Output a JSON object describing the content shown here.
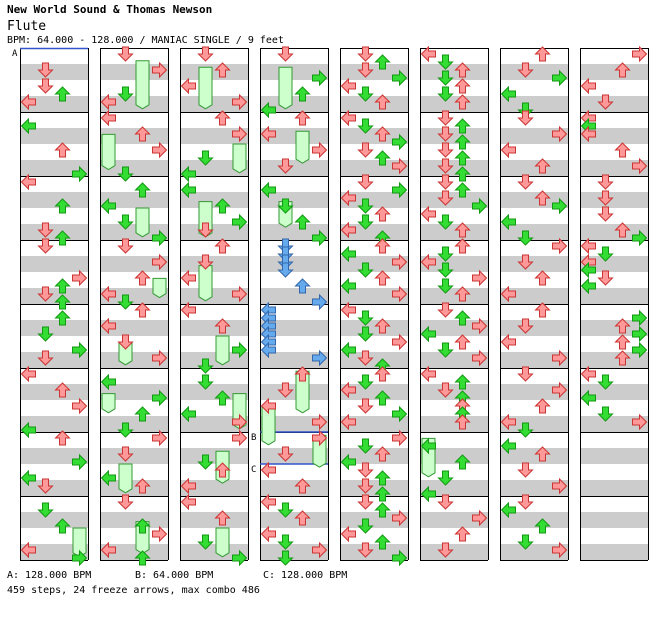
{
  "header": {
    "title": "New World Sound & Thomas Newson",
    "song": "Flute",
    "meta": "BPM: 64.000 - 128.000 / MANIAC SINGLE / 9 feet"
  },
  "bpm_markers": [
    {
      "label": "A",
      "bpm": "128.000"
    },
    {
      "label": "B",
      "bpm": "64.000"
    },
    {
      "label": "C",
      "bpm": "128.000"
    }
  ],
  "legend": [
    {
      "text": "A: 128.000 BPM"
    },
    {
      "text": "B: 64.000 BPM"
    },
    {
      "text": "C: 128.000 BPM"
    }
  ],
  "stats": {
    "text": "459 steps, 24 freeze arrows, max combo 486",
    "steps": 459,
    "freeze_arrows": 24,
    "max_combo": 486
  },
  "colors": {
    "quarter_note": "#ff9999",
    "eighth_note": "#33dd33",
    "sixteenth_note": "#66aaee",
    "freeze_body": "#ccffcc",
    "stripe": "#cccccc",
    "bpm_line": "#3355cc"
  },
  "chart": {
    "columns": 8,
    "measures_per_column": 8,
    "lanes": [
      "left",
      "down",
      "up",
      "right"
    ],
    "measures": [
      [
        [
          2,
          5
        ],
        [
          1,
          2
        ],
        [
          1,
          4
        ],
        [
          0,
          6
        ]
      ],
      [
        [
          0,
          1
        ],
        [
          2,
          4
        ],
        [
          3,
          7
        ]
      ],
      [
        [
          0,
          0
        ],
        [
          2,
          3
        ],
        [
          1,
          6
        ],
        [
          2,
          7
        ]
      ],
      [
        [
          1,
          0
        ],
        [
          3,
          4
        ],
        [
          2,
          5
        ],
        [
          1,
          6
        ],
        [
          2,
          7
        ]
      ],
      [
        [
          2,
          1
        ],
        [
          1,
          3
        ],
        [
          3,
          5
        ],
        [
          1,
          6
        ]
      ],
      [
        [
          0,
          0
        ],
        [
          2,
          2
        ],
        [
          3,
          4
        ],
        [
          0,
          7
        ]
      ],
      [
        [
          2,
          0
        ],
        [
          3,
          3
        ],
        [
          0,
          5
        ],
        [
          1,
          6
        ]
      ],
      [
        [
          1,
          1
        ],
        [
          2,
          3
        ],
        [
          0,
          6
        ],
        [
          3,
          7
        ]
      ],
      [
        [
          1,
          0
        ],
        [
          3,
          2
        ],
        [
          1,
          5
        ],
        [
          0,
          6
        ]
      ],
      [
        [
          0,
          0
        ],
        [
          2,
          2
        ],
        [
          3,
          4
        ],
        [
          1,
          7
        ]
      ],
      [
        [
          2,
          1
        ],
        [
          0,
          3
        ],
        [
          1,
          5
        ],
        [
          3,
          7
        ]
      ],
      [
        [
          1,
          0
        ],
        [
          3,
          2
        ],
        [
          2,
          4
        ],
        [
          0,
          6
        ],
        [
          1,
          7
        ]
      ],
      [
        [
          2,
          0
        ],
        [
          0,
          2
        ],
        [
          1,
          4
        ],
        [
          3,
          6
        ]
      ],
      [
        [
          0,
          1
        ],
        [
          3,
          3
        ],
        [
          2,
          5
        ],
        [
          1,
          7
        ]
      ],
      [
        [
          3,
          0
        ],
        [
          1,
          2
        ],
        [
          0,
          5
        ],
        [
          2,
          6
        ]
      ],
      [
        [
          1,
          0
        ],
        [
          2,
          3
        ],
        [
          3,
          4
        ],
        [
          0,
          6
        ],
        [
          2,
          7
        ]
      ],
      [
        [
          1,
          0
        ],
        [
          2,
          2
        ],
        [
          0,
          4
        ],
        [
          3,
          6
        ]
      ],
      [
        [
          2,
          0
        ],
        [
          3,
          2
        ],
        [
          1,
          5
        ],
        [
          0,
          7
        ]
      ],
      [
        [
          0,
          1
        ],
        [
          2,
          3
        ],
        [
          3,
          5
        ],
        [
          1,
          6
        ]
      ],
      [
        [
          2,
          0
        ],
        [
          1,
          2
        ],
        [
          0,
          4
        ],
        [
          3,
          6
        ]
      ],
      [
        [
          0,
          0
        ],
        [
          2,
          2
        ],
        [
          3,
          5
        ],
        [
          1,
          7
        ]
      ],
      [
        [
          1,
          1
        ],
        [
          2,
          3
        ],
        [
          0,
          5
        ],
        [
          3,
          6
        ]
      ],
      [
        [
          3,
          0
        ],
        [
          1,
          3
        ],
        [
          2,
          4
        ],
        [
          0,
          6
        ]
      ],
      [
        [
          0,
          0
        ],
        [
          2,
          2
        ],
        [
          1,
          5
        ],
        [
          3,
          7
        ]
      ],
      [
        [
          1,
          0
        ],
        [
          3,
          3
        ],
        [
          2,
          5
        ],
        [
          0,
          7
        ]
      ],
      [
        [
          2,
          0
        ],
        [
          0,
          2
        ],
        [
          3,
          4
        ],
        [
          1,
          6
        ]
      ],
      [
        [
          0,
          1
        ],
        [
          1,
          3
        ],
        [
          2,
          5
        ],
        [
          3,
          7
        ]
      ],
      [
        [
          1,
          0
        ],
        [
          1,
          1
        ],
        [
          1,
          2
        ],
        [
          1,
          3
        ],
        [
          2,
          5
        ],
        [
          3,
          7
        ]
      ],
      [
        [
          0,
          0
        ],
        [
          0,
          1
        ],
        [
          0,
          2
        ],
        [
          0,
          3
        ],
        [
          0,
          4
        ],
        [
          0,
          5
        ],
        [
          3,
          6
        ]
      ],
      [
        [
          2,
          0
        ],
        [
          1,
          2
        ],
        [
          0,
          4
        ],
        [
          3,
          6
        ]
      ],
      [
        [
          3,
          0
        ],
        [
          1,
          2
        ],
        [
          0,
          4
        ],
        [
          2,
          6
        ]
      ],
      [
        [
          0,
          0
        ],
        [
          1,
          1
        ],
        [
          2,
          2
        ],
        [
          0,
          4
        ],
        [
          1,
          5
        ],
        [
          3,
          6
        ],
        [
          1,
          7
        ]
      ],
      [
        [
          1,
          0
        ],
        [
          2,
          1
        ],
        [
          1,
          2
        ],
        [
          3,
          3
        ],
        [
          0,
          4
        ],
        [
          1,
          5
        ],
        [
          2,
          6
        ]
      ],
      [
        [
          0,
          0
        ],
        [
          1,
          1
        ],
        [
          2,
          2
        ],
        [
          3,
          3
        ],
        [
          1,
          4
        ],
        [
          2,
          5
        ],
        [
          3,
          6
        ]
      ],
      [
        [
          1,
          0
        ],
        [
          3,
          1
        ],
        [
          0,
          2
        ],
        [
          1,
          3
        ],
        [
          2,
          4
        ],
        [
          1,
          5
        ],
        [
          0,
          6
        ],
        [
          2,
          7
        ]
      ],
      [
        [
          2,
          0
        ],
        [
          0,
          1
        ],
        [
          3,
          2
        ],
        [
          1,
          3
        ],
        [
          2,
          4
        ],
        [
          0,
          5
        ],
        [
          3,
          6
        ]
      ],
      [
        [
          0,
          0
        ],
        [
          1,
          1
        ],
        [
          2,
          2
        ],
        [
          1,
          3
        ],
        [
          3,
          4
        ],
        [
          0,
          5
        ],
        [
          1,
          6
        ],
        [
          2,
          7
        ]
      ],
      [
        [
          2,
          0
        ],
        [
          1,
          1
        ],
        [
          0,
          2
        ],
        [
          2,
          3
        ],
        [
          1,
          4
        ],
        [
          3,
          5
        ],
        [
          0,
          6
        ]
      ],
      [
        [
          3,
          0
        ],
        [
          1,
          1
        ],
        [
          2,
          2
        ],
        [
          0,
          3
        ],
        [
          1,
          4
        ],
        [
          2,
          5
        ],
        [
          1,
          6
        ],
        [
          2,
          7
        ]
      ],
      [
        [
          1,
          0
        ],
        [
          2,
          1
        ],
        [
          3,
          2
        ],
        [
          1,
          3
        ],
        [
          0,
          4
        ],
        [
          2,
          5
        ],
        [
          1,
          6
        ],
        [
          3,
          7
        ]
      ],
      [
        [
          0,
          0
        ],
        [
          1,
          1
        ],
        [
          2,
          2
        ],
        [
          1,
          3
        ],
        [
          2,
          4
        ],
        [
          1,
          5
        ],
        [
          2,
          6
        ]
      ],
      [
        [
          1,
          0
        ],
        [
          2,
          1
        ],
        [
          1,
          2
        ],
        [
          2,
          3
        ],
        [
          1,
          4
        ],
        [
          2,
          5
        ],
        [
          1,
          6
        ],
        [
          2,
          7
        ]
      ],
      [
        [
          1,
          0
        ],
        [
          2,
          1
        ],
        [
          1,
          2
        ],
        [
          3,
          3
        ],
        [
          0,
          4
        ],
        [
          1,
          5
        ],
        [
          2,
          6
        ]
      ],
      [
        [
          2,
          0
        ],
        [
          1,
          1
        ],
        [
          0,
          2
        ],
        [
          1,
          3
        ],
        [
          3,
          4
        ],
        [
          1,
          5
        ],
        [
          2,
          6
        ]
      ],
      [
        [
          1,
          0
        ],
        [
          2,
          1
        ],
        [
          3,
          2
        ],
        [
          0,
          3
        ],
        [
          2,
          4
        ],
        [
          1,
          5
        ],
        [
          3,
          6
        ]
      ],
      [
        [
          0,
          0
        ],
        [
          2,
          1
        ],
        [
          1,
          2
        ],
        [
          2,
          3
        ],
        [
          2,
          4
        ],
        [
          2,
          5
        ],
        [
          2,
          6
        ]
      ],
      [
        [
          0,
          1
        ],
        [
          2,
          3
        ],
        [
          1,
          5
        ],
        [
          0,
          7
        ]
      ],
      [
        [
          1,
          0
        ],
        [
          3,
          2
        ],
        [
          2,
          4
        ],
        [
          1,
          6
        ]
      ],
      [
        [
          2,
          0
        ],
        [
          1,
          2
        ],
        [
          3,
          3
        ],
        [
          0,
          5
        ],
        [
          1,
          7
        ]
      ],
      [
        [
          1,
          0
        ],
        [
          3,
          2
        ],
        [
          0,
          4
        ],
        [
          2,
          6
        ]
      ],
      [
        [
          1,
          0
        ],
        [
          2,
          2
        ],
        [
          3,
          3
        ],
        [
          0,
          5
        ],
        [
          1,
          7
        ]
      ],
      [
        [
          3,
          0
        ],
        [
          1,
          2
        ],
        [
          2,
          4
        ],
        [
          0,
          6
        ]
      ],
      [
        [
          2,
          0
        ],
        [
          1,
          2
        ],
        [
          0,
          4
        ],
        [
          3,
          6
        ]
      ],
      [
        [
          1,
          0
        ],
        [
          3,
          2
        ],
        [
          2,
          4
        ],
        [
          0,
          6
        ],
        [
          1,
          7
        ]
      ],
      [
        [
          0,
          1
        ],
        [
          2,
          2
        ],
        [
          1,
          4
        ],
        [
          3,
          6
        ]
      ],
      [
        [
          1,
          0
        ],
        [
          0,
          1
        ],
        [
          2,
          3
        ],
        [
          1,
          5
        ],
        [
          3,
          6
        ]
      ],
      [
        [
          3,
          0
        ],
        [
          2,
          2
        ],
        [
          0,
          4
        ],
        [
          1,
          6
        ]
      ],
      [
        [
          0,
          0
        ],
        [
          0,
          1
        ],
        [
          0,
          2
        ],
        [
          2,
          4
        ],
        [
          3,
          6
        ]
      ],
      [
        [
          1,
          0
        ],
        [
          1,
          2
        ],
        [
          1,
          4
        ],
        [
          2,
          6
        ],
        [
          3,
          7
        ]
      ],
      [
        [
          0,
          0
        ],
        [
          1,
          1
        ],
        [
          0,
          2
        ],
        [
          0,
          3
        ],
        [
          1,
          4
        ],
        [
          0,
          5
        ]
      ],
      [
        [
          3,
          1
        ],
        [
          2,
          2
        ],
        [
          3,
          3
        ],
        [
          2,
          4
        ],
        [
          3,
          5
        ],
        [
          2,
          6
        ]
      ],
      [
        [
          0,
          0
        ],
        [
          1,
          1
        ],
        [
          0,
          3
        ],
        [
          1,
          5
        ],
        [
          3,
          6
        ]
      ]
    ],
    "freezes": [
      {
        "column": 1,
        "lane": 2,
        "start": 0.2,
        "end": 0.95
      },
      {
        "column": 1,
        "lane": 0,
        "start": 1.35,
        "end": 1.9
      },
      {
        "column": 1,
        "lane": 2,
        "start": 2.5,
        "end": 2.95
      },
      {
        "column": 1,
        "lane": 3,
        "start": 3.6,
        "end": 3.9
      },
      {
        "column": 1,
        "lane": 1,
        "start": 4.6,
        "end": 4.95
      },
      {
        "column": 1,
        "lane": 0,
        "start": 5.4,
        "end": 5.7
      },
      {
        "column": 1,
        "lane": 1,
        "start": 6.5,
        "end": 6.95
      },
      {
        "column": 1,
        "lane": 2,
        "start": 7.4,
        "end": 7.9
      },
      {
        "column": 2,
        "lane": 1,
        "start": 0.3,
        "end": 0.95
      },
      {
        "column": 2,
        "lane": 3,
        "start": 1.5,
        "end": 1.95
      },
      {
        "column": 2,
        "lane": 1,
        "start": 2.4,
        "end": 2.95
      },
      {
        "column": 2,
        "lane": 1,
        "start": 3.4,
        "end": 3.95
      },
      {
        "column": 2,
        "lane": 2,
        "start": 4.5,
        "end": 4.95
      },
      {
        "column": 2,
        "lane": 3,
        "start": 5.4,
        "end": 5.95
      },
      {
        "column": 2,
        "lane": 2,
        "start": 6.3,
        "end": 6.8
      },
      {
        "column": 2,
        "lane": 2,
        "start": 7.5,
        "end": 7.95
      },
      {
        "column": 0,
        "lane": 3,
        "start": 7.5,
        "end": 7.95
      },
      {
        "column": 3,
        "lane": 1,
        "start": 0.3,
        "end": 0.95
      },
      {
        "column": 3,
        "lane": 2,
        "start": 1.3,
        "end": 1.8
      },
      {
        "column": 3,
        "lane": 1,
        "start": 2.4,
        "end": 2.8
      },
      {
        "column": 3,
        "lane": 0,
        "start": 5.6,
        "end": 6.2
      },
      {
        "column": 3,
        "lane": 2,
        "start": 5.05,
        "end": 5.7
      },
      {
        "column": 3,
        "lane": 3,
        "start": 6.05,
        "end": 6.55
      },
      {
        "column": 5,
        "lane": 0,
        "start": 6.1,
        "end": 6.7
      }
    ],
    "speed_segments": [
      {
        "column": 3,
        "from": 6.0,
        "to": 6.5,
        "label": "B"
      },
      {
        "column": 3,
        "from": 6.5,
        "to": 6.95,
        "label": "C"
      }
    ]
  }
}
